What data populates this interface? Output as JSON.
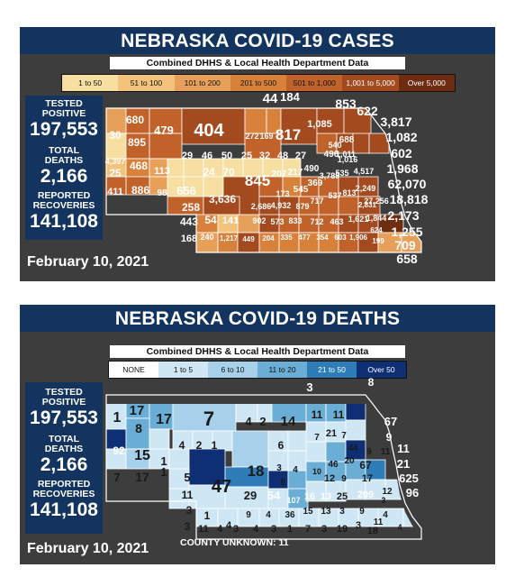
{
  "colors": {
    "title_bar": "#13345e",
    "panel_bg": "#3d3d3d",
    "cases_scale": [
      "#f7dfa2",
      "#f3c37c",
      "#e7a05a",
      "#d8813b",
      "#c0622a",
      "#a34a1f",
      "#6e2d10"
    ],
    "deaths_scale": [
      "#ffffff",
      "#cfe6f4",
      "#a7d1ea",
      "#6aaed6",
      "#2f7db8",
      "#0e2f74"
    ]
  },
  "cases": {
    "title": "NEBRASKA COVID-19 CASES",
    "subtitle": "Combined DHHS & Local Health Department Data",
    "legend": [
      "1 to 50",
      "51 to 100",
      "101 to 200",
      "201 to 500",
      "501 to 1,000",
      "1,001 to 5,000",
      "Over 5,000"
    ],
    "stats": {
      "tested_positive_label": "TESTED POSITIVE",
      "tested_positive": "197,553",
      "total_deaths_label": "TOTAL DEATHS",
      "total_deaths": "2,166",
      "recoveries_label": "REPORTED RECOVERIES",
      "recoveries": "141,108"
    },
    "date": "February 10, 2021",
    "county_labels": [
      "44",
      "184",
      "853",
      "622",
      "3,817",
      "1,082",
      "602",
      "1,968",
      "62,070",
      "18,818",
      "2,173",
      "1,255",
      "709",
      "658",
      "680",
      "30",
      "479",
      "895",
      "404",
      "272",
      "169",
      "817",
      "1,085",
      "540",
      "688",
      "1,011",
      "4,397",
      "468",
      "25",
      "113",
      "29",
      "46",
      "50",
      "25",
      "32",
      "48",
      "27",
      "207",
      "217",
      "490",
      "496",
      "1,016",
      "411",
      "886",
      "98",
      "656",
      "24",
      "70",
      "845",
      "173",
      "545",
      "369",
      "3,789",
      "535",
      "4,517",
      "258",
      "3,636",
      "2,686",
      "4,932",
      "879",
      "717",
      "537",
      "813",
      "2,249",
      "443",
      "54",
      "141",
      "902",
      "573",
      "833",
      "712",
      "463",
      "1,621",
      "1,844",
      "27,256",
      "624",
      "168",
      "240",
      "1,217",
      "449",
      "204",
      "335",
      "477",
      "354",
      "603",
      "1,906",
      "199",
      "2,831"
    ]
  },
  "deaths": {
    "title": "NEBRASKA COVID-19 DEATHS",
    "subtitle": "Combined DHHS & Local Health Department Data",
    "legend": [
      "NONE",
      "1 to 5",
      "6 to 10",
      "11 to 20",
      "21 to 50",
      "Over 50"
    ],
    "stats": {
      "tested_positive_label": "TESTED POSITIVE",
      "tested_positive": "197,553",
      "total_deaths_label": "TOTAL DEATHS",
      "total_deaths": "2,166",
      "recoveries_label": "REPORTED RECOVERIES",
      "recoveries": "141,108"
    },
    "date": "February 10, 2021",
    "county_unknown": "COUNTY UNKNOWN: 11",
    "county_labels": [
      "3",
      "8",
      "67",
      "9",
      "11",
      "21",
      "625",
      "96",
      "1",
      "17",
      "8",
      "17",
      "7",
      "4",
      "2",
      "14",
      "11",
      "11",
      "7",
      "21",
      "7",
      "44",
      "9",
      "11",
      "92",
      "15",
      "1",
      "4",
      "2",
      "1",
      "6",
      "20",
      "67",
      "46",
      "17",
      "7",
      "17",
      "1",
      "5",
      "18",
      "3",
      "4",
      "8",
      "10",
      "12",
      "9",
      "12",
      "11",
      "47",
      "29",
      "54",
      "107",
      "16",
      "13",
      "25",
      "209",
      "3",
      "3",
      "1",
      "4",
      "9",
      "4",
      "36",
      "15",
      "13",
      "3",
      "9",
      "11",
      "4",
      "4",
      "3",
      "11",
      "4",
      "3",
      "4",
      "3",
      "1",
      "7",
      "3",
      "19",
      "3",
      "18"
    ]
  }
}
